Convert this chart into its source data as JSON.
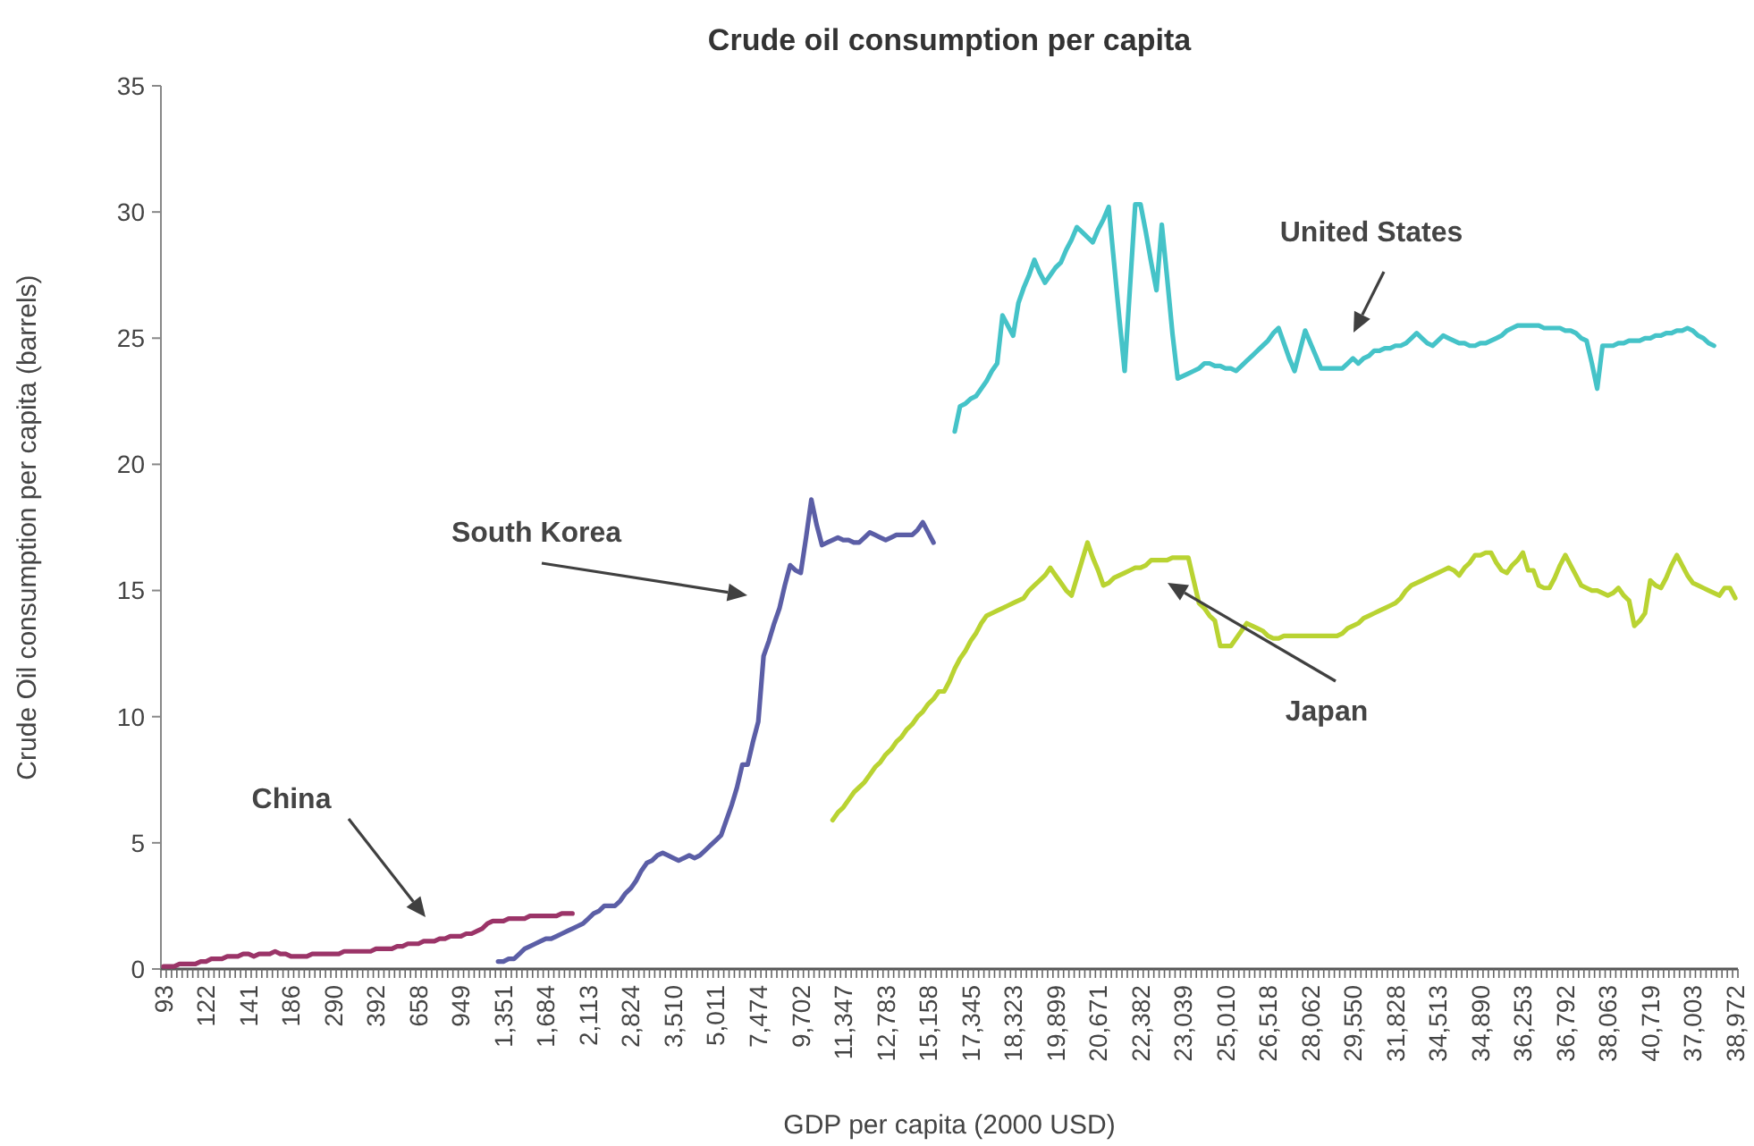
{
  "chart_data": {
    "type": "line",
    "title": "Crude oil consumption per capita",
    "xlabel": "GDP per capita (2000 USD)",
    "ylabel": "Crude Oil consumption per capita (barrels)",
    "categories": [
      "93",
      null,
      null,
      null,
      null,
      null,
      null,
      null,
      "122",
      null,
      null,
      null,
      null,
      null,
      null,
      null,
      "141",
      null,
      null,
      null,
      null,
      null,
      null,
      null,
      "186",
      null,
      null,
      null,
      null,
      null,
      null,
      null,
      "290",
      null,
      null,
      null,
      null,
      null,
      null,
      null,
      "392",
      null,
      null,
      null,
      null,
      null,
      null,
      null,
      "658",
      null,
      null,
      null,
      null,
      null,
      null,
      null,
      "949",
      null,
      null,
      null,
      null,
      null,
      null,
      null,
      "1,351",
      null,
      null,
      null,
      null,
      null,
      null,
      null,
      "1,684",
      null,
      null,
      null,
      null,
      null,
      null,
      null,
      "2,113",
      null,
      null,
      null,
      null,
      null,
      null,
      null,
      "2,824",
      null,
      null,
      null,
      null,
      null,
      null,
      null,
      "3,510",
      null,
      null,
      null,
      null,
      null,
      null,
      null,
      "5,011",
      null,
      null,
      null,
      null,
      null,
      null,
      null,
      "7,474",
      null,
      null,
      null,
      null,
      null,
      null,
      null,
      "9,702",
      null,
      null,
      null,
      null,
      null,
      null,
      null,
      "11,347",
      null,
      null,
      null,
      null,
      null,
      null,
      null,
      "12,783",
      null,
      null,
      null,
      null,
      null,
      null,
      null,
      "15,158",
      null,
      null,
      null,
      null,
      null,
      null,
      null,
      "17,345",
      null,
      null,
      null,
      null,
      null,
      null,
      null,
      "18,323",
      null,
      null,
      null,
      null,
      null,
      null,
      null,
      "19,899",
      null,
      null,
      null,
      null,
      null,
      null,
      null,
      "20,671",
      null,
      null,
      null,
      null,
      null,
      null,
      null,
      "22,382",
      null,
      null,
      null,
      null,
      null,
      null,
      null,
      "23,039",
      null,
      null,
      null,
      null,
      null,
      null,
      null,
      "25,010",
      null,
      null,
      null,
      null,
      null,
      null,
      null,
      "26,518",
      null,
      null,
      null,
      null,
      null,
      null,
      null,
      "28,062",
      null,
      null,
      null,
      null,
      null,
      null,
      null,
      "29,550",
      null,
      null,
      null,
      null,
      null,
      null,
      null,
      "31,828",
      null,
      null,
      null,
      null,
      null,
      null,
      null,
      "34,513",
      null,
      null,
      null,
      null,
      null,
      null,
      null,
      "34,890",
      null,
      null,
      null,
      null,
      null,
      null,
      null,
      "36,253",
      null,
      null,
      null,
      null,
      null,
      null,
      null,
      "36,792",
      null,
      null,
      null,
      null,
      null,
      null,
      null,
      "38,063",
      null,
      null,
      null,
      null,
      null,
      null,
      null,
      "40,719",
      null,
      null,
      null,
      null,
      null,
      null,
      null,
      "37,003",
      null,
      null,
      null,
      null,
      null,
      null,
      null,
      "38,972"
    ],
    "series": [
      {
        "color": "#9b3468",
        "values": [
          0.1,
          0.1,
          0.1,
          0.2,
          0.2,
          0.2,
          0.2,
          0.3,
          0.3,
          0.4,
          0.4,
          0.4,
          0.5,
          0.5,
          0.5,
          0.6,
          0.6,
          0.5,
          0.6,
          0.6,
          0.6,
          0.7,
          0.6,
          0.6,
          0.5,
          0.5,
          0.5,
          0.5,
          0.6,
          0.6,
          0.6,
          0.6,
          0.6,
          0.6,
          0.7,
          0.7,
          0.7,
          0.7,
          0.7,
          0.7,
          0.8,
          0.8,
          0.8,
          0.8,
          0.9,
          0.9,
          1.0,
          1.0,
          1.0,
          1.1,
          1.1,
          1.1,
          1.2,
          1.2,
          1.3,
          1.3,
          1.3,
          1.4,
          1.4,
          1.5,
          1.6,
          1.8,
          1.9,
          1.9,
          1.9,
          2.0,
          2.0,
          2.0,
          2.0,
          2.1,
          2.1,
          2.1,
          2.1,
          2.1,
          2.1,
          2.2,
          2.2,
          2.2,
          null,
          null,
          null,
          null,
          null,
          null,
          null,
          null,
          null,
          null,
          null,
          null,
          null,
          null,
          null,
          null,
          null,
          null,
          null,
          null,
          null,
          null,
          null,
          null,
          null,
          null,
          null,
          null,
          null,
          null,
          null,
          null,
          null,
          null,
          null,
          null,
          null,
          null,
          null,
          null,
          null,
          null,
          null,
          null,
          null,
          null,
          null,
          null,
          null,
          null,
          null,
          null,
          null,
          null,
          null,
          null,
          null,
          null,
          null,
          null,
          null,
          null,
          null,
          null,
          null,
          null,
          null,
          null,
          null,
          null,
          null,
          null,
          null,
          null,
          null,
          null,
          null,
          null,
          null,
          null,
          null,
          null,
          null,
          null,
          null,
          null,
          null,
          null,
          null,
          null,
          null,
          null,
          null,
          null,
          null,
          null,
          null,
          null,
          null,
          null,
          null,
          null,
          null,
          null,
          null,
          null,
          null,
          null,
          null,
          null,
          null,
          null,
          null,
          null,
          null,
          null,
          null,
          null,
          null,
          null,
          null,
          null,
          null,
          null,
          null,
          null,
          null,
          null,
          null,
          null,
          null,
          null,
          null,
          null,
          null,
          null,
          null,
          null,
          null,
          null,
          null,
          null,
          null,
          null,
          null,
          null,
          null,
          null,
          null,
          null,
          null,
          null,
          null,
          null,
          null,
          null,
          null,
          null,
          null,
          null,
          null,
          null,
          null,
          null,
          null,
          null,
          null,
          null,
          null,
          null,
          null,
          null,
          null,
          null,
          null,
          null,
          null,
          null,
          null,
          null,
          null,
          null,
          null,
          null,
          null,
          null,
          null,
          null,
          null,
          null,
          null,
          null,
          null,
          null,
          null,
          null,
          null,
          null,
          null,
          null,
          null,
          null,
          null,
          null,
          null,
          null,
          null,
          null,
          null,
          null,
          null,
          null,
          null,
          null,
          null,
          null,
          null,
          null,
          null
        ]
      },
      {
        "color": "#5b5ea6",
        "values": [
          null,
          null,
          null,
          null,
          null,
          null,
          null,
          null,
          null,
          null,
          null,
          null,
          null,
          null,
          null,
          null,
          null,
          null,
          null,
          null,
          null,
          null,
          null,
          null,
          null,
          null,
          null,
          null,
          null,
          null,
          null,
          null,
          null,
          null,
          null,
          null,
          null,
          null,
          null,
          null,
          null,
          null,
          null,
          null,
          null,
          null,
          null,
          null,
          null,
          null,
          null,
          null,
          null,
          null,
          null,
          null,
          null,
          null,
          null,
          null,
          null,
          null,
          null,
          0.3,
          0.3,
          0.4,
          0.4,
          0.6,
          0.8,
          0.9,
          1.0,
          1.1,
          1.2,
          1.2,
          1.3,
          1.4,
          1.5,
          1.6,
          1.7,
          1.8,
          2.0,
          2.2,
          2.3,
          2.5,
          2.5,
          2.5,
          2.7,
          3.0,
          3.2,
          3.5,
          3.9,
          4.2,
          4.3,
          4.5,
          4.6,
          4.5,
          4.4,
          4.3,
          4.4,
          4.5,
          4.4,
          4.5,
          4.7,
          4.9,
          5.1,
          5.3,
          5.9,
          6.5,
          7.2,
          8.1,
          8.1,
          9.0,
          9.8,
          12.4,
          13.0,
          13.7,
          14.3,
          15.2,
          16.0,
          15.8,
          15.7,
          17.1,
          18.6,
          17.6,
          16.8,
          16.9,
          17.0,
          17.1,
          17.0,
          17.0,
          16.9,
          16.9,
          17.1,
          17.3,
          17.2,
          17.1,
          17.0,
          17.1,
          17.2,
          17.2,
          17.2,
          17.2,
          17.4,
          17.7,
          17.3,
          16.9,
          null,
          null,
          null,
          null,
          null,
          null,
          null,
          null,
          null,
          null,
          null,
          null,
          null,
          null,
          null,
          null,
          null,
          null,
          null,
          null,
          null,
          null,
          null,
          null,
          null,
          null,
          null,
          null,
          null,
          null,
          null,
          null,
          null,
          null,
          null,
          null,
          null,
          null,
          null,
          null,
          null,
          null,
          null,
          null,
          null,
          null,
          null,
          null,
          null,
          null,
          null,
          null,
          null,
          null,
          null,
          null,
          null,
          null,
          null,
          null,
          null,
          null,
          null,
          null,
          null,
          null,
          null,
          null,
          null,
          null,
          null,
          null,
          null,
          null,
          null,
          null,
          null,
          null,
          null,
          null,
          null,
          null,
          null,
          null,
          null,
          null,
          null,
          null,
          null,
          null,
          null,
          null,
          null,
          null,
          null,
          null,
          null,
          null,
          null,
          null,
          null,
          null,
          null,
          null,
          null,
          null,
          null,
          null,
          null,
          null,
          null,
          null,
          null,
          null,
          null,
          null,
          null,
          null,
          null,
          null,
          null,
          null,
          null,
          null,
          null,
          null,
          null,
          null,
          null,
          null,
          null,
          null,
          null,
          null,
          null,
          null,
          null,
          null,
          null,
          null,
          null,
          null,
          null,
          null,
          null,
          null,
          null,
          null,
          null,
          null,
          null
        ]
      },
      {
        "color": "#45c3c8",
        "values": [
          null,
          null,
          null,
          null,
          null,
          null,
          null,
          null,
          null,
          null,
          null,
          null,
          null,
          null,
          null,
          null,
          null,
          null,
          null,
          null,
          null,
          null,
          null,
          null,
          null,
          null,
          null,
          null,
          null,
          null,
          null,
          null,
          null,
          null,
          null,
          null,
          null,
          null,
          null,
          null,
          null,
          null,
          null,
          null,
          null,
          null,
          null,
          null,
          null,
          null,
          null,
          null,
          null,
          null,
          null,
          null,
          null,
          null,
          null,
          null,
          null,
          null,
          null,
          null,
          null,
          null,
          null,
          null,
          null,
          null,
          null,
          null,
          null,
          null,
          null,
          null,
          null,
          null,
          null,
          null,
          null,
          null,
          null,
          null,
          null,
          null,
          null,
          null,
          null,
          null,
          null,
          null,
          null,
          null,
          null,
          null,
          null,
          null,
          null,
          null,
          null,
          null,
          null,
          null,
          null,
          null,
          null,
          null,
          null,
          null,
          null,
          null,
          null,
          null,
          null,
          null,
          null,
          null,
          null,
          null,
          null,
          null,
          null,
          null,
          null,
          null,
          null,
          null,
          null,
          null,
          null,
          null,
          null,
          null,
          null,
          null,
          null,
          null,
          null,
          null,
          null,
          null,
          null,
          null,
          null,
          null,
          null,
          null,
          null,
          21.3,
          22.3,
          22.4,
          22.6,
          22.7,
          23.0,
          23.3,
          23.7,
          24.0,
          25.9,
          25.5,
          25.1,
          26.4,
          27.0,
          27.5,
          28.1,
          27.6,
          27.2,
          27.5,
          27.8,
          28.0,
          28.5,
          28.9,
          29.4,
          29.2,
          29.0,
          28.8,
          29.3,
          29.7,
          30.2,
          28.0,
          25.8,
          23.7,
          27.0,
          30.3,
          30.3,
          29.2,
          28.0,
          26.9,
          29.5,
          27.4,
          25.2,
          23.4,
          23.5,
          23.6,
          23.7,
          23.8,
          24.0,
          24.0,
          23.9,
          23.9,
          23.8,
          23.8,
          23.7,
          23.9,
          24.1,
          24.3,
          24.5,
          24.7,
          24.9,
          25.2,
          25.4,
          24.8,
          24.2,
          23.7,
          24.5,
          25.3,
          24.8,
          24.3,
          23.8,
          23.8,
          23.8,
          23.8,
          23.8,
          24.0,
          24.2,
          24.0,
          24.2,
          24.3,
          24.5,
          24.5,
          24.6,
          24.6,
          24.7,
          24.7,
          24.8,
          25.0,
          25.2,
          25.0,
          24.8,
          24.7,
          24.9,
          25.1,
          25.0,
          24.9,
          24.8,
          24.8,
          24.7,
          24.7,
          24.8,
          24.8,
          24.9,
          25.0,
          25.1,
          25.3,
          25.4,
          25.5,
          25.5,
          25.5,
          25.5,
          25.5,
          25.4,
          25.4,
          25.4,
          25.4,
          25.3,
          25.3,
          25.2,
          25.0,
          24.9,
          24.0,
          23.0,
          24.7,
          24.7,
          24.7,
          24.8,
          24.8,
          24.9,
          24.9,
          24.9,
          25.0,
          25.0,
          25.1,
          25.1,
          25.2,
          25.2,
          25.3,
          25.3,
          25.4,
          25.3,
          25.1,
          25.0,
          24.8,
          24.7,
          null,
          null,
          null,
          null
        ]
      },
      {
        "color": "#b9d332",
        "values": [
          null,
          null,
          null,
          null,
          null,
          null,
          null,
          null,
          null,
          null,
          null,
          null,
          null,
          null,
          null,
          null,
          null,
          null,
          null,
          null,
          null,
          null,
          null,
          null,
          null,
          null,
          null,
          null,
          null,
          null,
          null,
          null,
          null,
          null,
          null,
          null,
          null,
          null,
          null,
          null,
          null,
          null,
          null,
          null,
          null,
          null,
          null,
          null,
          null,
          null,
          null,
          null,
          null,
          null,
          null,
          null,
          null,
          null,
          null,
          null,
          null,
          null,
          null,
          null,
          null,
          null,
          null,
          null,
          null,
          null,
          null,
          null,
          null,
          null,
          null,
          null,
          null,
          null,
          null,
          null,
          null,
          null,
          null,
          null,
          null,
          null,
          null,
          null,
          null,
          null,
          null,
          null,
          null,
          null,
          null,
          null,
          null,
          null,
          null,
          null,
          null,
          null,
          null,
          null,
          null,
          null,
          null,
          null,
          null,
          null,
          null,
          null,
          null,
          null,
          null,
          null,
          null,
          null,
          null,
          null,
          null,
          null,
          null,
          null,
          null,
          null,
          5.9,
          6.2,
          6.4,
          6.7,
          7.0,
          7.2,
          7.4,
          7.7,
          8.0,
          8.2,
          8.5,
          8.7,
          9.0,
          9.2,
          9.5,
          9.7,
          10.0,
          10.2,
          10.5,
          10.7,
          11.0,
          11.0,
          11.4,
          11.9,
          12.3,
          12.6,
          13.0,
          13.3,
          13.7,
          14.0,
          14.1,
          14.2,
          14.3,
          14.4,
          14.5,
          14.6,
          14.7,
          15.0,
          15.2,
          15.4,
          15.6,
          15.9,
          15.6,
          15.3,
          15.0,
          14.8,
          15.5,
          16.2,
          16.9,
          16.3,
          15.8,
          15.2,
          15.3,
          15.5,
          15.6,
          15.7,
          15.8,
          15.9,
          15.9,
          16.0,
          16.2,
          16.2,
          16.2,
          16.2,
          16.3,
          16.3,
          16.3,
          16.3,
          15.4,
          14.5,
          14.3,
          14.0,
          13.8,
          12.8,
          12.8,
          12.8,
          13.1,
          13.4,
          13.7,
          13.6,
          13.5,
          13.4,
          13.2,
          13.1,
          13.1,
          13.2,
          13.2,
          13.2,
          13.2,
          13.2,
          13.2,
          13.2,
          13.2,
          13.2,
          13.2,
          13.2,
          13.3,
          13.5,
          13.6,
          13.7,
          13.9,
          14.0,
          14.1,
          14.2,
          14.3,
          14.4,
          14.5,
          14.7,
          15.0,
          15.2,
          15.3,
          15.4,
          15.5,
          15.6,
          15.7,
          15.8,
          15.9,
          15.8,
          15.6,
          15.9,
          16.1,
          16.4,
          16.4,
          16.5,
          16.5,
          16.1,
          15.8,
          15.7,
          16.0,
          16.2,
          16.5,
          15.8,
          15.8,
          15.2,
          15.1,
          15.1,
          15.5,
          16.0,
          16.4,
          16.0,
          15.6,
          15.2,
          15.1,
          15.0,
          15.0,
          14.9,
          14.8,
          14.9,
          15.1,
          14.8,
          14.6,
          13.6,
          13.8,
          14.1,
          15.4,
          15.2,
          15.1,
          15.5,
          16.0,
          16.4,
          16.0,
          15.6,
          15.3,
          15.2,
          15.1,
          15.0,
          14.9,
          14.8,
          15.1,
          15.1,
          14.7
        ]
      }
    ],
    "annotations": [
      "China",
      "South Korea",
      "United States",
      "Japan"
    ],
    "ylim": [
      0,
      35
    ],
    "yticks": [
      0,
      5,
      10,
      15,
      20,
      25,
      30,
      35
    ]
  }
}
